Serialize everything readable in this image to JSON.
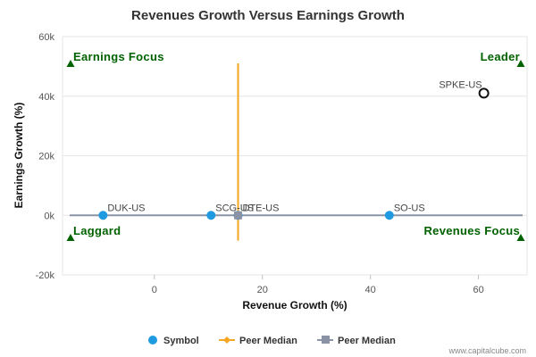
{
  "chart_data": {
    "type": "scatter",
    "title": "Revenues Growth Versus Earnings Growth",
    "xlabel": "Revenue Growth (%)",
    "ylabel": "Earnings Growth (%)",
    "xlim": [
      -17,
      69
    ],
    "ylim": [
      -20000,
      60000
    ],
    "x_ticks": [
      0,
      20,
      40,
      60
    ],
    "y_ticks": [
      {
        "value": 60000,
        "label": "60k"
      },
      {
        "value": 40000,
        "label": "40k"
      },
      {
        "value": 20000,
        "label": "20k"
      },
      {
        "value": 0,
        "label": "0k"
      },
      {
        "value": -20000,
        "label": "-20k"
      }
    ],
    "grid": "horizontal",
    "symbols": [
      {
        "label": "DUK-US",
        "x": -9.5,
        "y": 0
      },
      {
        "label": "SCG-US",
        "x": 10.5,
        "y": 0
      },
      {
        "label": "DTE-US",
        "x": 15.5,
        "y": 0
      },
      {
        "label": "SO-US",
        "x": 43.5,
        "y": 0
      }
    ],
    "subject": {
      "label": "SPKE-US",
      "x": 61,
      "y": 41000
    },
    "peer_median": {
      "x": 15.5,
      "y": 0
    },
    "quadrant_labels": {
      "top_left": "Earnings Focus",
      "top_right": "Leader",
      "bottom_left": "Laggard",
      "bottom_right": "Revenues Focus"
    },
    "legend": {
      "position": "bottom",
      "items": [
        {
          "label": "Symbol",
          "color": "#1f9ae0"
        },
        {
          "label": "Peer Median",
          "color": "#f5a623"
        },
        {
          "label": "Peer Median",
          "color": "#8a93a6"
        }
      ]
    },
    "credit": "www.capitalcube.com",
    "colors": {
      "symbol": "#1f9ae0",
      "peer_median_vertical": "#f5a623",
      "peer_median_horizontal": "#8a93a6",
      "quadrant_text": "#006100",
      "marker": "#006100"
    }
  }
}
